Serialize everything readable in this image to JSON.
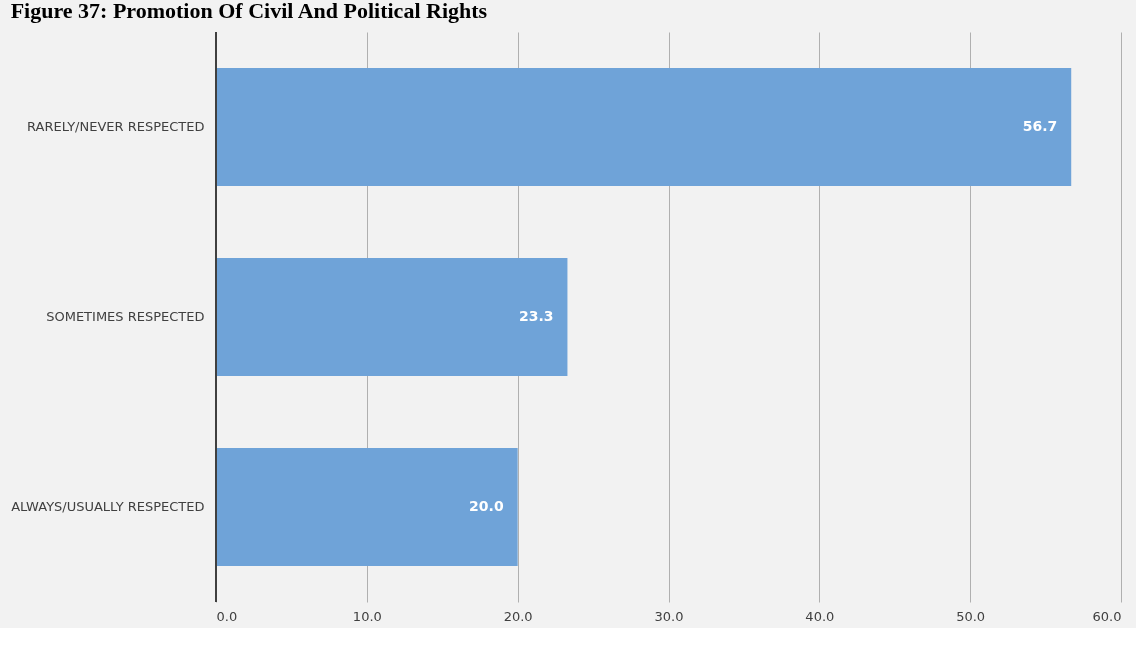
{
  "chart_data": {
    "type": "bar",
    "orientation": "horizontal",
    "title": "Figure 37: Promotion Of Civil And Political Rights",
    "categories": [
      "RARELY/NEVER RESPECTED",
      "SOMETIMES RESPECTED",
      "ALWAYS/USUALLY RESPECTED"
    ],
    "values": [
      56.7,
      23.3,
      20.0
    ],
    "color": "#6fa3d8",
    "value_labels": [
      "56.7",
      "23.3",
      "20.0"
    ],
    "xlim": [
      0,
      60
    ],
    "xticks": [
      {
        "value": 0,
        "label": "0.0"
      },
      {
        "value": 10,
        "label": "10.0"
      },
      {
        "value": 20,
        "label": "20.0"
      },
      {
        "value": 30,
        "label": "30.0"
      },
      {
        "value": 40,
        "label": "40.0"
      },
      {
        "value": 50,
        "label": "50.0"
      },
      {
        "value": 60,
        "label": "60.0"
      }
    ],
    "grid": "x"
  }
}
